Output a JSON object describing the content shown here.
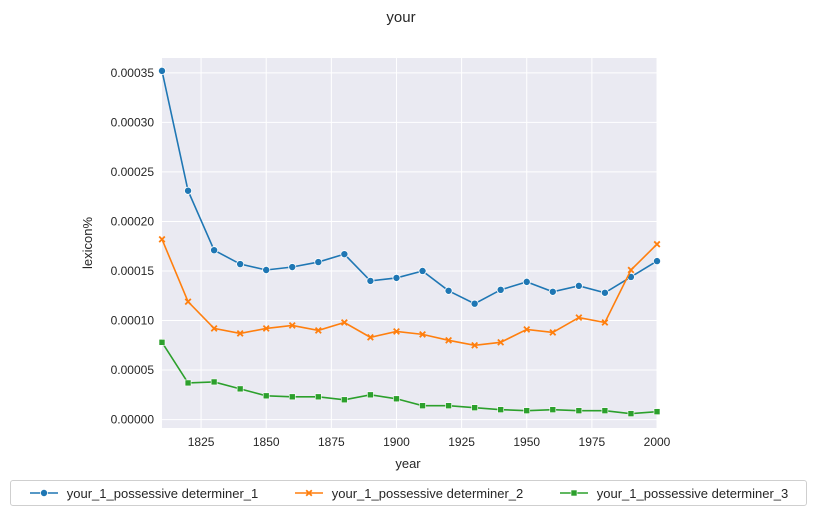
{
  "chart_data": {
    "type": "line",
    "title": "your",
    "xlabel": "year",
    "ylabel": "lexicon%",
    "xlim": [
      1810,
      2000
    ],
    "ylim": [
      -8.5e-06,
      0.000365
    ],
    "x_ticks": [
      1825,
      1850,
      1875,
      1900,
      1925,
      1950,
      1975,
      2000
    ],
    "y_ticks": [
      0.0,
      5e-05,
      0.0001,
      0.00015,
      0.0002,
      0.00025,
      0.0003,
      0.00035
    ],
    "y_tick_labels": [
      "0.00000",
      "0.00005",
      "0.00010",
      "0.00015",
      "0.00020",
      "0.00025",
      "0.00030",
      "0.00035"
    ],
    "grid": true,
    "legend_position": "bottom",
    "x": [
      1810,
      1820,
      1830,
      1840,
      1850,
      1860,
      1870,
      1880,
      1890,
      1900,
      1910,
      1920,
      1930,
      1940,
      1950,
      1960,
      1970,
      1980,
      1990,
      2000
    ],
    "series": [
      {
        "name": "your_1_possessive determiner_1",
        "color": "#1f77b4",
        "marker": "circle",
        "values": [
          0.000352,
          0.000231,
          0.000171,
          0.000157,
          0.000151,
          0.000154,
          0.000159,
          0.000167,
          0.00014,
          0.000143,
          0.00015,
          0.00013,
          0.000117,
          0.000131,
          0.000139,
          0.000129,
          0.000135,
          0.000128,
          0.000144,
          0.00016
        ]
      },
      {
        "name": "your_1_possessive determiner_2",
        "color": "#ff7f0e",
        "marker": "x",
        "values": [
          0.000182,
          0.000119,
          9.2e-05,
          8.7e-05,
          9.2e-05,
          9.5e-05,
          9e-05,
          9.8e-05,
          8.3e-05,
          8.9e-05,
          8.6e-05,
          8e-05,
          7.5e-05,
          7.8e-05,
          9.1e-05,
          8.8e-05,
          0.000103,
          9.8e-05,
          0.000151,
          0.000177
        ]
      },
      {
        "name": "your_1_possessive determiner_3",
        "color": "#2ca02c",
        "marker": "square",
        "values": [
          7.8e-05,
          3.7e-05,
          3.8e-05,
          3.1e-05,
          2.4e-05,
          2.3e-05,
          2.3e-05,
          2e-05,
          2.5e-05,
          2.1e-05,
          1.4e-05,
          1.4e-05,
          1.2e-05,
          1e-05,
          9e-06,
          1e-05,
          9e-06,
          9e-06,
          6e-06,
          8e-06
        ]
      }
    ]
  }
}
